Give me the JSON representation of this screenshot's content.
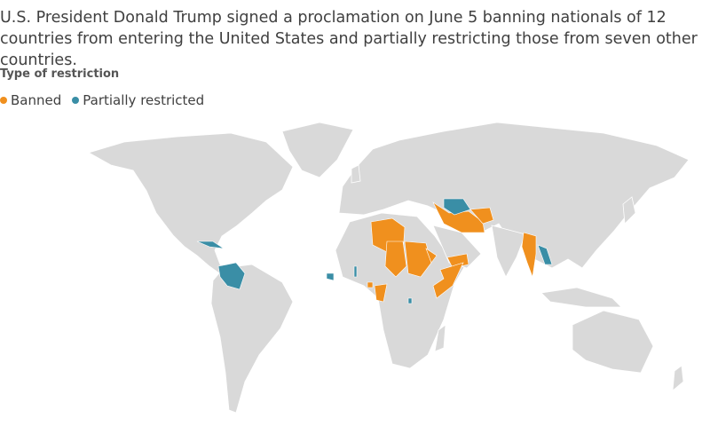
{
  "subtitle": "U.S. President Donald Trump signed a proclamation on June 5 banning nationals of 12 countries from entering the United States and partially restricting those from seven other countries.",
  "legend": {
    "title": "Type of restriction",
    "items": [
      {
        "label": "Banned",
        "color": "#f0901e"
      },
      {
        "label": "Partially restricted",
        "color": "#3a8ea6"
      }
    ]
  }
}
